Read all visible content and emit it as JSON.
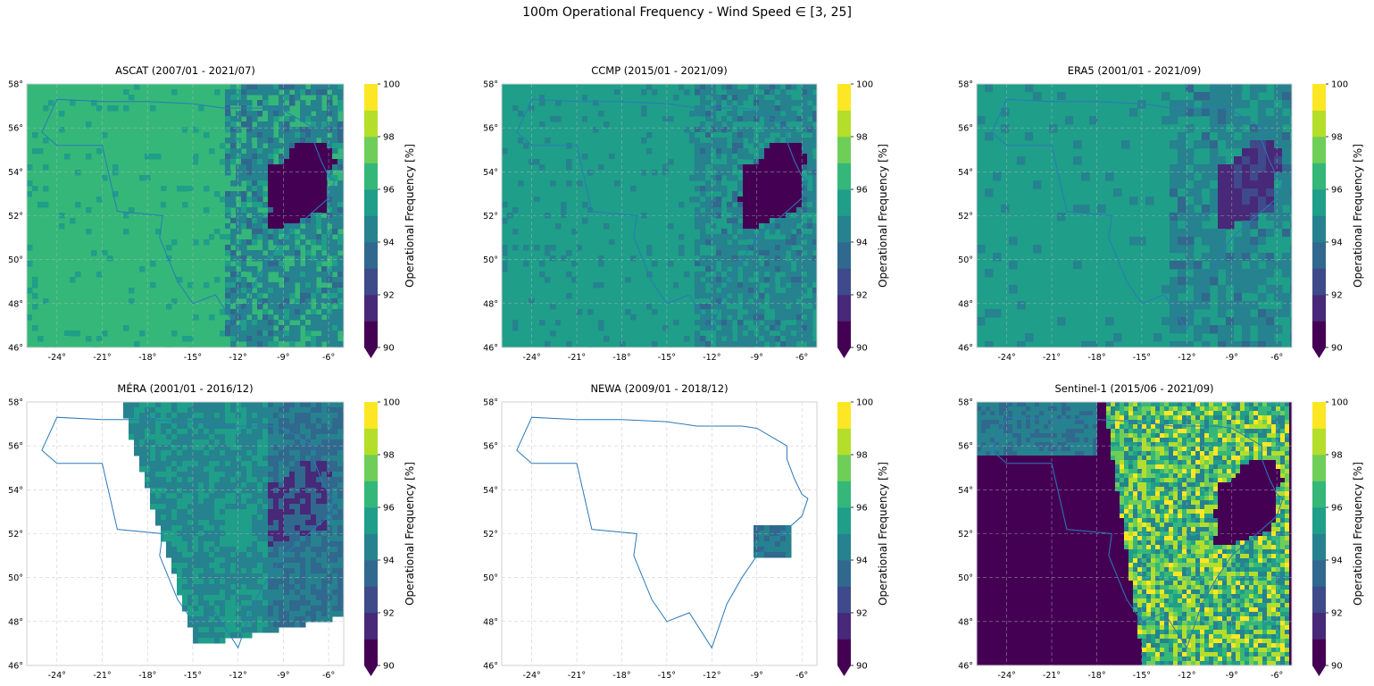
{
  "figure": {
    "suptitle": "100m Operational Frequency - Wind Speed ∈ [3, 25]"
  },
  "colors": {
    "viridis_bins": [
      "#440154",
      "#482878",
      "#3e4a89",
      "#31688e",
      "#26828e",
      "#1f9e89",
      "#35b779",
      "#6ece58",
      "#b5de2b",
      "#fde725"
    ],
    "boundary_line": "#2a7ab9",
    "grid": "#bbbbbb",
    "frame": "#d0d0d0"
  },
  "chart_data": [
    {
      "type": "heatmap",
      "title": "ASCAT (2007/01 - 2021/07)",
      "xticks": [
        "-24°",
        "-21°",
        "-18°",
        "-15°",
        "-12°",
        "-9°",
        "-6°"
      ],
      "yticks": [
        "46°",
        "48°",
        "50°",
        "52°",
        "54°",
        "56°",
        "58°"
      ],
      "xlim": [
        -26,
        -5
      ],
      "ylim": [
        46,
        58
      ],
      "grid": true,
      "colorbar": {
        "label": "Operational Frequency [%]",
        "range": [
          90,
          100
        ],
        "ticks": [
          "90",
          "92",
          "94",
          "96",
          "98",
          "100"
        ],
        "extend": "min"
      },
      "dominant_value_pct": 96,
      "east_value_pct": 94.5,
      "ireland_value_pct": 90
    },
    {
      "type": "heatmap",
      "title": "CCMP (2015/01 - 2021/09)",
      "xticks": [
        "-24°",
        "-21°",
        "-18°",
        "-15°",
        "-12°",
        "-9°",
        "-6°"
      ],
      "yticks": [
        "46°",
        "48°",
        "50°",
        "52°",
        "54°",
        "56°",
        "58°"
      ],
      "xlim": [
        -26,
        -5
      ],
      "ylim": [
        46,
        58
      ],
      "grid": true,
      "colorbar": {
        "label": "Operational Frequency [%]",
        "range": [
          90,
          100
        ],
        "ticks": [
          "90",
          "92",
          "94",
          "96",
          "98",
          "100"
        ],
        "extend": "min"
      },
      "dominant_value_pct": 95,
      "east_value_pct": 94.5,
      "ireland_value_pct": 90
    },
    {
      "type": "heatmap",
      "title": "ERA5 (2001/01 - 2021/09)",
      "xticks": [
        "-24°",
        "-21°",
        "-18°",
        "-15°",
        "-12°",
        "-9°",
        "-6°"
      ],
      "yticks": [
        "46°",
        "48°",
        "50°",
        "52°",
        "54°",
        "56°",
        "58°"
      ],
      "xlim": [
        -26,
        -5
      ],
      "ylim": [
        46,
        58
      ],
      "grid": true,
      "colorbar": {
        "label": "Operational Frequency [%]",
        "range": [
          90,
          100
        ],
        "ticks": [
          "90",
          "92",
          "94",
          "96",
          "98",
          "100"
        ],
        "extend": "min"
      },
      "dominant_value_pct": 95,
      "east_value_pct": 94.5,
      "ireland_value_pct": 91
    },
    {
      "type": "heatmap",
      "title": "MÉRA (2001/01 - 2016/12)",
      "xticks": [
        "-24°",
        "-21°",
        "-18°",
        "-15°",
        "-12°",
        "-9°",
        "-6°"
      ],
      "yticks": [
        "46°",
        "48°",
        "50°",
        "52°",
        "54°",
        "56°",
        "58°"
      ],
      "xlim": [
        -26,
        -5
      ],
      "ylim": [
        46,
        58
      ],
      "grid": true,
      "colorbar": {
        "label": "Operational Frequency [%]",
        "range": [
          90,
          100
        ],
        "ticks": [
          "90",
          "92",
          "94",
          "96",
          "98",
          "100"
        ],
        "extend": "min"
      },
      "dominant_value_pct": 94.5,
      "east_value_pct": 93.5,
      "ireland_value_pct": 91.5
    },
    {
      "type": "heatmap",
      "title": "NEWA (2009/01 - 2018/12)",
      "xticks": [
        "-24°",
        "-21°",
        "-18°",
        "-15°",
        "-12°",
        "-9°",
        "-6°"
      ],
      "yticks": [
        "46°",
        "48°",
        "50°",
        "52°",
        "54°",
        "56°",
        "58°"
      ],
      "xlim": [
        -26,
        -5
      ],
      "ylim": [
        46,
        58
      ],
      "grid": true,
      "colorbar": {
        "label": "Operational Frequency [%]",
        "range": [
          90,
          100
        ],
        "ticks": [
          "90",
          "92",
          "94",
          "96",
          "98",
          "100"
        ],
        "extend": "min"
      },
      "dominant_value_pct": 94.5,
      "east_value_pct": 93.5,
      "ireland_value_pct": 93.5
    },
    {
      "type": "heatmap",
      "title": "Sentinel-1 (2015/06 - 2021/09)",
      "xticks": [
        "-24°",
        "-21°",
        "-18°",
        "-15°",
        "-12°",
        "-9°",
        "-6°"
      ],
      "yticks": [
        "46°",
        "48°",
        "50°",
        "52°",
        "54°",
        "56°",
        "58°"
      ],
      "xlim": [
        -26,
        -5
      ],
      "ylim": [
        46,
        58
      ],
      "grid": true,
      "colorbar": {
        "label": "Operational Frequency [%]",
        "range": [
          90,
          100
        ],
        "ticks": [
          "90",
          "92",
          "94",
          "96",
          "98",
          "100"
        ],
        "extend": "min"
      },
      "dominant_value_pct": 97,
      "east_value_pct": 96,
      "ireland_value_pct": 90
    }
  ]
}
